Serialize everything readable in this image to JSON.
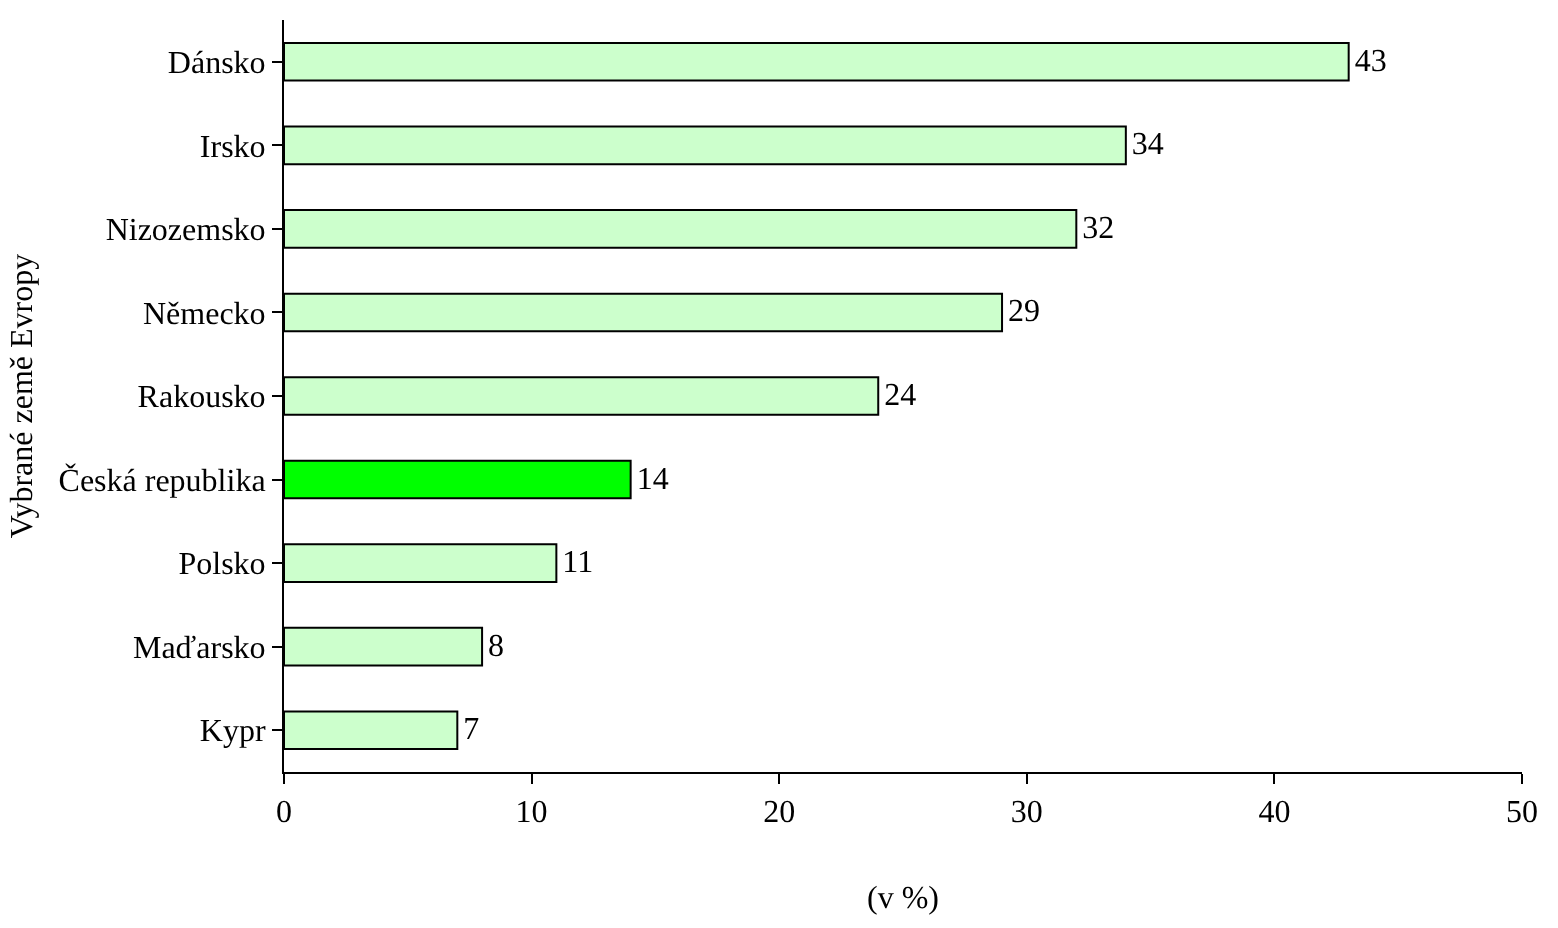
{
  "chart_data": {
    "type": "bar",
    "orientation": "horizontal",
    "xlabel": "(v %)",
    "ylabel": "Vybrané země Evropy",
    "categories": [
      "Dánsko",
      "Irsko",
      "Nizozemsko",
      "Německo",
      "Rakousko",
      "Česká republika",
      "Polsko",
      "Maďarsko",
      "Kypr"
    ],
    "values": [
      43,
      34,
      32,
      29,
      24,
      14,
      11,
      8,
      7
    ],
    "colors": [
      "#ccffcc",
      "#ccffcc",
      "#ccffcc",
      "#ccffcc",
      "#ccffcc",
      "#00ff00",
      "#ccffcc",
      "#ccffcc",
      "#ccffcc"
    ],
    "xlim": [
      0,
      50
    ],
    "xticks": [
      0,
      10,
      20,
      30,
      40,
      50
    ],
    "data_labels": true
  }
}
